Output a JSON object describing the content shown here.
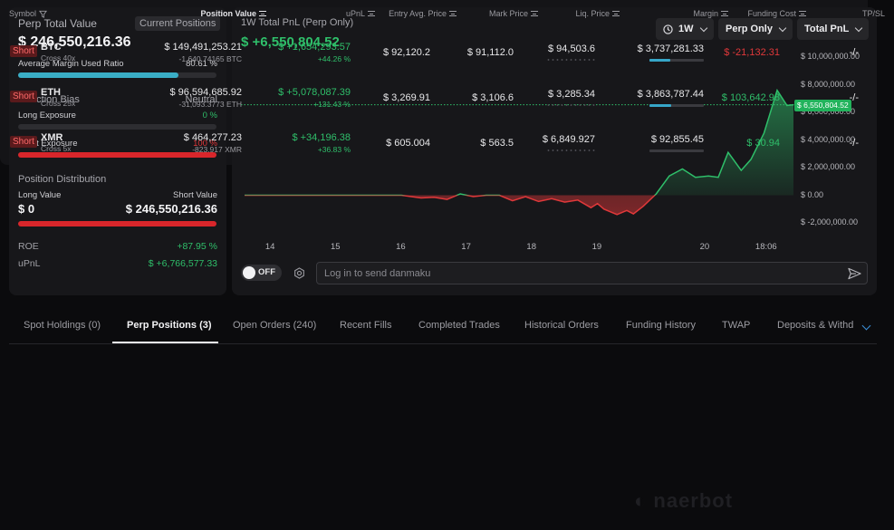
{
  "summary": {
    "title": "Perp Total Value",
    "positions_button": "Current Positions",
    "total_value": "$ 246,550,216.36",
    "margin_label": "Average Margin Used Ratio",
    "margin_value": "80.61 %",
    "margin_ratio": 0.8061,
    "direction_label": "Direction Bias",
    "direction_value": "Neutral",
    "long_exposure_label": "Long Exposure",
    "long_exposure_value": "0 %",
    "long_exposure_ratio": 0,
    "short_exposure_label": "Short Exposure",
    "short_exposure_value": "100 %",
    "short_exposure_ratio": 1,
    "distribution_label": "Position Distribution",
    "long_value_label": "Long Value",
    "short_value_label": "Short Value",
    "long_value": "$ 0",
    "short_value": "$ 246,550,216.36",
    "roe_label": "ROE",
    "roe_value": "+87.95 %",
    "upnl_label": "uPnL",
    "upnl_value": "$ +6,766,577.33"
  },
  "pnl_chart": {
    "title": "1W Total PnL (Perp Only)",
    "value": "$ +6,550,804.52",
    "period_button": "1W",
    "scope_button": "Perp Only",
    "metric_button": "Total PnL",
    "current_label": "$ 6,550,804.52",
    "danmaku_toggle": "OFF",
    "danmaku_placeholder": "Log in to send danmaku",
    "colors": {
      "up": "#2fbf6a",
      "down": "#e0383a",
      "label_bg": "#22b35c"
    }
  },
  "chart_data": {
    "type": "area",
    "title": "1W Total PnL (Perp Only)",
    "x_labels": [
      "14",
      "15",
      "16",
      "17",
      "18",
      "19",
      "20",
      "18:06"
    ],
    "y_ticks": [
      "$ 10,000,000.00",
      "$ 8,000,000.00",
      "$ 6,000,000.00",
      "$ 4,000,000.00",
      "$ 2,000,000.00",
      "$ 0.00",
      "$ -2,000,000.00"
    ],
    "ylim": [
      -2000000,
      10000000
    ],
    "x": [
      13.6,
      14,
      15,
      16,
      16.3,
      16.5,
      16.7,
      16.9,
      17.1,
      17.3,
      17.5,
      17.7,
      17.9,
      18.1,
      18.3,
      18.5,
      18.7,
      18.9,
      19.0,
      19.1,
      19.3,
      19.45,
      19.55,
      19.7,
      19.9,
      20.1,
      20.3,
      20.5,
      20.7,
      20.85,
      21.0,
      21.2,
      21.35,
      21.55,
      21.75,
      21.9,
      22.0
    ],
    "y": [
      0,
      0,
      0,
      0,
      -200000,
      -150000,
      -300000,
      100000,
      -100000,
      0,
      0,
      -400000,
      -100000,
      -450000,
      -250000,
      -500000,
      -350000,
      -900000,
      -600000,
      -1000000,
      -1400000,
      -1100000,
      -1350000,
      -800000,
      100000,
      1400000,
      1900000,
      1300000,
      1400000,
      1300000,
      3100000,
      1800000,
      2600000,
      4500000,
      7600000,
      6500000,
      6550804.52
    ],
    "current_value": 6550804.52,
    "grid": false
  },
  "tabs": [
    {
      "label": "Spot Holdings (0)",
      "active": false
    },
    {
      "label": "Perp Positions (3)",
      "active": true
    },
    {
      "label": "Open Orders (240)",
      "active": false
    },
    {
      "label": "Recent Fills",
      "active": false
    },
    {
      "label": "Completed Trades",
      "active": false
    },
    {
      "label": "Historical Orders",
      "active": false
    },
    {
      "label": "Funding History",
      "active": false
    },
    {
      "label": "TWAP",
      "active": false
    },
    {
      "label": "Deposits & Withd",
      "active": false
    }
  ],
  "table": {
    "headers": {
      "symbol": "Symbol",
      "position_value": "Position Value",
      "upnl": "uPnL",
      "entry": "Entry Avg. Price",
      "mark": "Mark Price",
      "liq": "Liq. Price",
      "margin": "Margin",
      "funding": "Funding Cost",
      "tpsl": "TP/SL"
    },
    "rows": [
      {
        "side": "Short",
        "symbol": "BTC",
        "mode": "Cross 40x",
        "value": "$ 149,491,253.21",
        "size": "-1,640.74165 BTC",
        "upnl": "$ +1,654,293.57",
        "upnl_pct": "+44.26 %",
        "entry": "$ 92,120.2",
        "mark": "$ 91,112.0",
        "liq": "$ 94,503.6",
        "margin": "$ 3,737,281.33",
        "margin_ratio": 0.38,
        "funding": "$ -21,132.31",
        "funding_positive": false,
        "tpsl": "-/-"
      },
      {
        "side": "Short",
        "symbol": "ETH",
        "mode": "Cross 25x",
        "value": "$ 96,594,685.92",
        "size": "-31,093.3773 ETH",
        "upnl": "$ +5,078,087.39",
        "upnl_pct": "+131.43 %",
        "entry": "$ 3,269.91",
        "mark": "$ 3,106.6",
        "liq": "$ 3,285.34",
        "margin": "$ 3,863,787.44",
        "margin_ratio": 0.4,
        "funding": "$ 103,642.98",
        "funding_positive": true,
        "tpsl": "-/-"
      },
      {
        "side": "Short",
        "symbol": "XMR",
        "mode": "Cross 5x",
        "value": "$ 464,277.23",
        "size": "-823.917 XMR",
        "upnl": "$ +34,196.38",
        "upnl_pct": "+36.83 %",
        "entry": "$ 605.004",
        "mark": "$ 563.5",
        "liq": "$ 6,849.927",
        "margin": "$ 92,855.45",
        "margin_ratio": 0.0,
        "funding": "$ 30.94",
        "funding_positive": true,
        "tpsl": "-/-"
      }
    ]
  }
}
